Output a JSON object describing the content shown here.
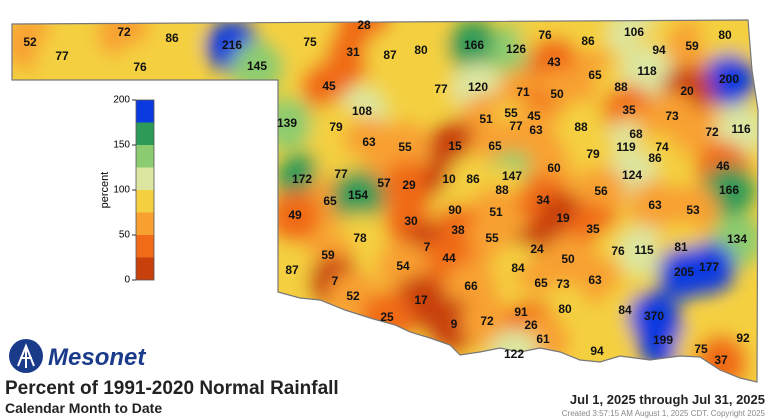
{
  "logo": "Mesonet",
  "title": "Percent of 1991-2020 Normal Rainfall",
  "subtitle": "Calendar Month to Date",
  "date_range": "Jul 1, 2025 through Jul 31, 2025",
  "created": "Created 3:57:15 AM August 1, 2025 CDT. Copyright 2025",
  "colorbar": {
    "label": "percent",
    "lim": [
      0,
      200
    ],
    "ticks": [
      0,
      50,
      100,
      150,
      200
    ],
    "colors": [
      "#c8400c",
      "#f06a18",
      "#f8a030",
      "#f4d040",
      "#dce6a0",
      "#8ccc70",
      "#2e9a58",
      "#0a3ae0"
    ]
  },
  "stations": [
    52,
    77,
    72,
    86,
    76,
    216,
    145,
    28,
    75,
    31,
    87,
    80,
    166,
    126,
    76,
    86,
    106,
    94,
    59,
    80,
    45,
    77,
    120,
    71,
    43,
    65,
    50,
    88,
    118,
    200,
    20,
    108,
    139,
    79,
    51,
    55,
    45,
    77,
    63,
    88,
    35,
    73,
    72,
    116,
    63,
    55,
    15,
    65,
    68,
    119,
    74,
    86,
    172,
    77,
    57,
    29,
    10,
    86,
    147,
    60,
    79,
    124,
    46,
    65,
    154,
    88,
    56,
    166,
    49,
    30,
    90,
    51,
    34,
    19,
    35,
    63,
    53,
    78,
    38,
    55,
    24,
    7,
    76,
    115,
    81,
    134,
    59,
    44,
    50,
    84,
    205,
    177,
    87,
    7,
    54,
    63,
    73,
    65,
    66,
    52,
    17,
    91,
    80,
    84,
    370,
    25,
    9,
    72,
    26,
    61,
    199,
    92,
    122,
    94,
    75,
    37
  ]
}
